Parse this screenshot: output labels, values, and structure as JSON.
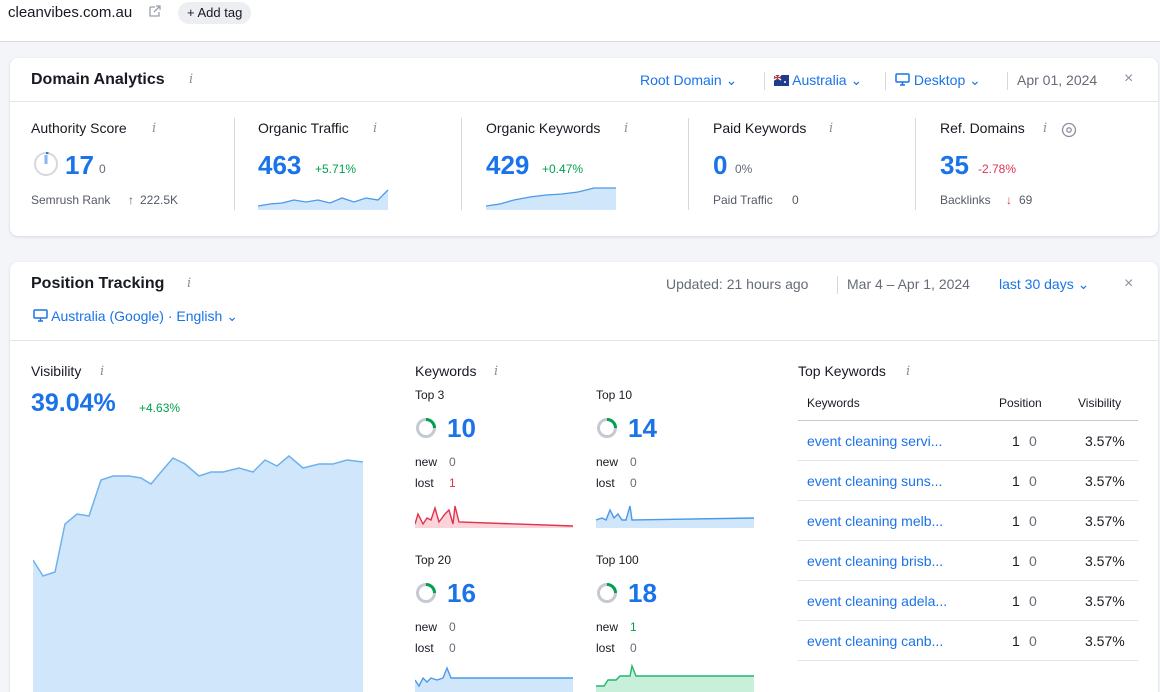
{
  "top": {
    "domain": "cleanvibes.com.au",
    "add_tag": "+ Add tag"
  },
  "domain_analytics": {
    "title": "Domain Analytics",
    "info": "i",
    "root_domain": "Root Domain",
    "country": "Australia",
    "device": "Desktop",
    "date": "Apr 01, 2024",
    "close": "×",
    "metrics": [
      {
        "label": "Authority Score",
        "value": "17",
        "change": "0",
        "sub_label": "Semrush Rank",
        "sub_value": "222.5K",
        "sub_arrow": "↑"
      },
      {
        "label": "Organic Traffic",
        "value": "463",
        "change": "+5.71%"
      },
      {
        "label": "Organic Keywords",
        "value": "429",
        "change": "+0.47%"
      },
      {
        "label": "Paid Keywords",
        "value": "0",
        "change": "0%",
        "sub_label": "Paid Traffic",
        "sub_value": "0"
      },
      {
        "label": "Ref. Domains",
        "value": "35",
        "change": "-2.78%",
        "sub_label": "Backlinks",
        "sub_value": "69",
        "sub_arrow": "↓"
      }
    ]
  },
  "position_tracking": {
    "title": "Position Tracking",
    "info": "i",
    "updated": "Updated: 21 hours ago",
    "range": "Mar 4 – Apr 1, 2024",
    "period": "last 30 days",
    "close": "×",
    "location": "Australia (Google) · English",
    "visibility": {
      "label": "Visibility",
      "value": "39.04%",
      "change": "+4.63%"
    },
    "keywords": {
      "label": "Keywords",
      "new_label": "new",
      "lost_label": "lost",
      "groups": [
        {
          "name": "Top 3",
          "value": "10",
          "new": "0",
          "lost": "1"
        },
        {
          "name": "Top 10",
          "value": "14",
          "new": "0",
          "lost": "0"
        },
        {
          "name": "Top 20",
          "value": "16",
          "new": "0",
          "lost": "0"
        },
        {
          "name": "Top 100",
          "value": "18",
          "new": "1",
          "lost": "0"
        }
      ]
    },
    "top_keywords": {
      "label": "Top Keywords",
      "col_keywords": "Keywords",
      "col_position": "Position",
      "col_visibility": "Visibility",
      "rows": [
        {
          "keyword": "event cleaning servi...",
          "position": "1",
          "change": "0",
          "visibility": "3.57%"
        },
        {
          "keyword": "event cleaning suns...",
          "position": "1",
          "change": "0",
          "visibility": "3.57%"
        },
        {
          "keyword": "event cleaning melb...",
          "position": "1",
          "change": "0",
          "visibility": "3.57%"
        },
        {
          "keyword": "event cleaning brisb...",
          "position": "1",
          "change": "0",
          "visibility": "3.57%"
        },
        {
          "keyword": "event cleaning adela...",
          "position": "1",
          "change": "0",
          "visibility": "3.57%"
        },
        {
          "keyword": "event cleaning canb...",
          "position": "1",
          "change": "0",
          "visibility": "3.57%"
        }
      ]
    }
  },
  "colors": {
    "accent": "#1a73e8",
    "positive": "#00a14b",
    "negative": "#e0334e",
    "chart_fill": "#cfe6fb",
    "red_fill": "#fbd3d9",
    "green_fill": "#c7efd9"
  },
  "icons": [
    "external-link-icon",
    "info-icon",
    "chevron-down-icon",
    "australia-flag-icon",
    "desktop-icon",
    "close-icon",
    "gauge-icon",
    "donut-icon",
    "settings-icon"
  ]
}
